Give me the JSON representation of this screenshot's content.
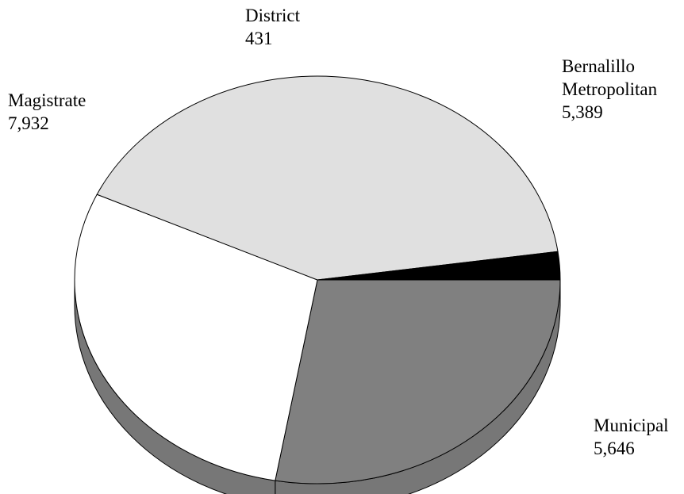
{
  "chart_data": {
    "type": "pie",
    "three_d": true,
    "title": "",
    "slices": [
      {
        "label_lines": [
          "Bernalillo",
          "Metropolitan"
        ],
        "value": 5389,
        "value_label": "5,389",
        "color": "#808080"
      },
      {
        "label_lines": [
          "Municipal"
        ],
        "value": 5646,
        "value_label": "5,646",
        "color": "#ffffff"
      },
      {
        "label_lines": [
          "Magistrate"
        ],
        "value": 7932,
        "value_label": "7,932",
        "color": "#e0e0e0"
      },
      {
        "label_lines": [
          "District"
        ],
        "value": 431,
        "value_label": "431",
        "color": "#000000"
      }
    ],
    "side_color": "#777777",
    "edge_color": "#000000"
  }
}
